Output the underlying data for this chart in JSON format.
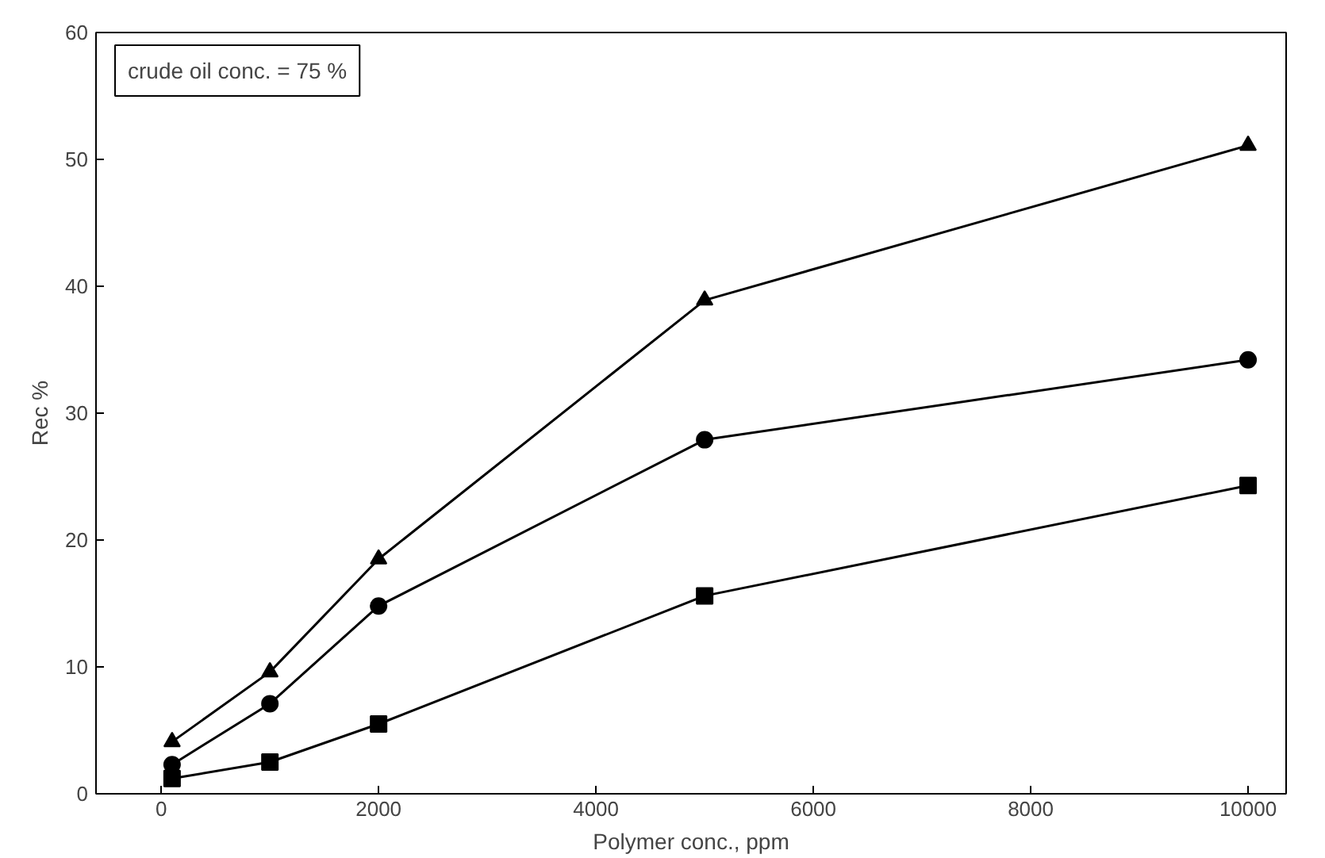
{
  "chart_data": {
    "type": "line",
    "xlabel": "Polymer conc., ppm",
    "ylabel": "Rec %",
    "x": [
      100,
      1000,
      2000,
      5000,
      10000
    ],
    "series": [
      {
        "color": "#000000",
        "marker": "square",
        "values": [
          1.2,
          2.5,
          5.5,
          15.6,
          24.3
        ]
      },
      {
        "color": "#000000",
        "marker": "circle",
        "values": [
          2.3,
          7.1,
          14.8,
          27.9,
          34.2
        ]
      },
      {
        "color": "#000000",
        "marker": "triangle",
        "values": [
          4.1,
          9.6,
          18.5,
          38.9,
          51.1
        ]
      }
    ],
    "annotations": [
      "crude oil conc. = 75 %"
    ],
    "xlim": [
      -600,
      10350
    ],
    "ylim": [
      0,
      60
    ],
    "xticks": [
      0,
      2000,
      4000,
      6000,
      8000,
      10000
    ],
    "yticks": [
      0,
      10,
      20,
      30,
      40,
      50,
      60
    ],
    "grid": false,
    "line_style": "solid"
  }
}
